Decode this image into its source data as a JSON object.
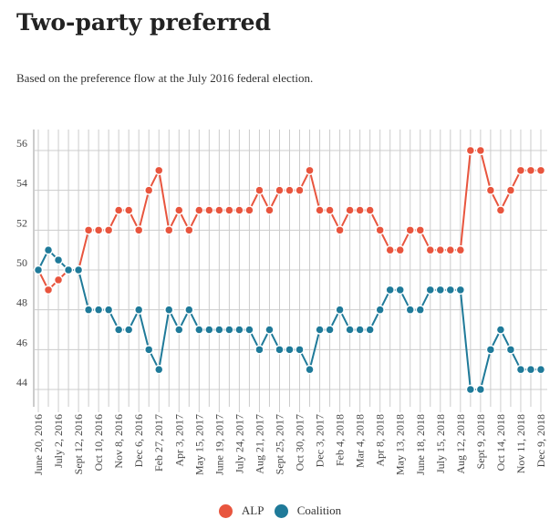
{
  "title": "Two-party preferred",
  "subtitle": "Based on the preference flow at the July 2016 federal election.",
  "chart_data": {
    "type": "line",
    "title": "Two-party preferred",
    "xlabel": "",
    "ylabel": "",
    "ylim": [
      43,
      57
    ],
    "yticks": [
      44,
      46,
      48,
      50,
      52,
      54,
      56
    ],
    "grid": true,
    "legend": "bottom-center",
    "tick_labels_every": 2,
    "x_tick_labels": [
      "June 20, 2016",
      "July 2, 2016",
      "Sept 12, 2016",
      "Oct 10, 2016",
      "Nov 8, 2016",
      "Dec 6, 2016",
      "Feb 27, 2017",
      "Apr 3, 2017",
      "May 15, 2017",
      "June 19, 2017",
      "July 24, 2017",
      "Aug 21, 2017",
      "Sept 25, 2017",
      "Oct 30, 2017",
      "Dec 3, 2017",
      "Feb 4, 2018",
      "Mar 4, 2018",
      "Apr 8, 2018",
      "May 13, 2018",
      "June 18, 2018",
      "July 15, 2018",
      "Aug 12, 2018",
      "Sept 9, 2018",
      "Oct 14, 2018",
      "Nov 11, 2018",
      "Dec 9, 2018"
    ],
    "series": [
      {
        "name": "ALP",
        "color": "#e8553e",
        "values": [
          50,
          49,
          49.5,
          50,
          50,
          52,
          52,
          52,
          53,
          53,
          52,
          54,
          55,
          52,
          53,
          52,
          53,
          53,
          53,
          53,
          53,
          53,
          54,
          53,
          54,
          54,
          54,
          55,
          53,
          53,
          52,
          53,
          53,
          53,
          52,
          51,
          51,
          52,
          52,
          51,
          51,
          51,
          51,
          56,
          56,
          54,
          53,
          54,
          55,
          55,
          55
        ]
      },
      {
        "name": "Coalition",
        "color": "#1f7a99",
        "values": [
          50,
          51,
          50.5,
          50,
          50,
          48,
          48,
          48,
          47,
          47,
          48,
          46,
          45,
          48,
          47,
          48,
          47,
          47,
          47,
          47,
          47,
          47,
          46,
          47,
          46,
          46,
          46,
          45,
          47,
          47,
          48,
          47,
          47,
          47,
          48,
          49,
          49,
          48,
          48,
          49,
          49,
          49,
          49,
          44,
          44,
          46,
          47,
          46,
          45,
          45,
          45
        ]
      }
    ]
  }
}
